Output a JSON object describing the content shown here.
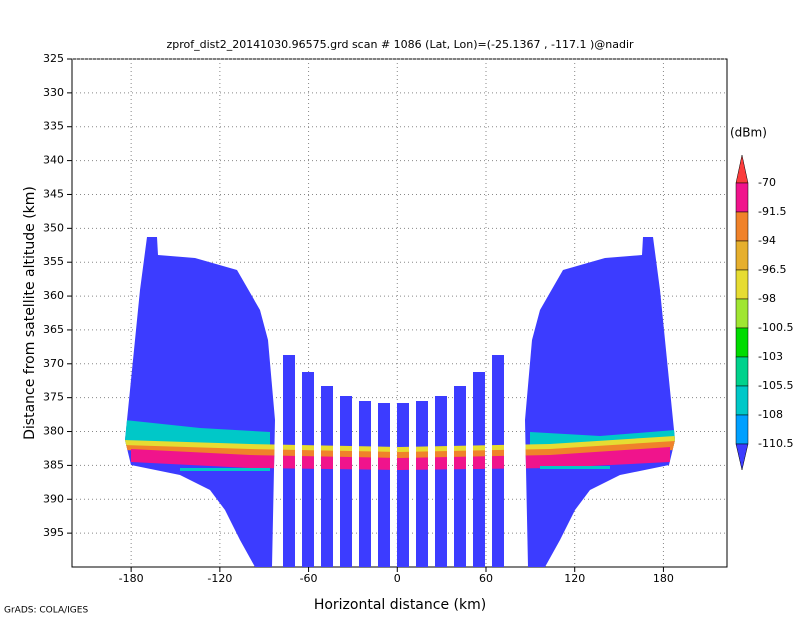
{
  "chart_data": {
    "type": "shaded",
    "title": "zprof_dist2_20141030.96575.grd   scan # 1086   (Lat, Lon)=(-25.1367 , -117.1 )@nadir",
    "x_label": "Horizontal distance (km)",
    "y_label": "Distance from satellite altitude (km)",
    "xlim": [
      -220,
      223
    ],
    "ylim": [
      400,
      325
    ],
    "y_inverted": true,
    "xticks": [
      -180,
      -120,
      -60,
      0,
      60,
      120,
      180
    ],
    "yticks": [
      325,
      330,
      335,
      340,
      345,
      350,
      355,
      360,
      365,
      370,
      375,
      380,
      385,
      390,
      395
    ],
    "grid": true,
    "colorbar": {
      "title": "(dBm)",
      "levels": [
        -70,
        -91.5,
        -94,
        -96.5,
        -98,
        -100.5,
        -103,
        -105.5,
        -108,
        -110.5
      ],
      "colors": [
        "#fa3c3c",
        "#f0148c",
        "#f0822a",
        "#e6af2d",
        "#e6dc32",
        "#a0e632",
        "#00dc00",
        "#00d28c",
        "#00c8c8",
        "#00a0ff",
        "#3c3cff"
      ]
    },
    "credit": "GrADS: COLA/IGES"
  }
}
